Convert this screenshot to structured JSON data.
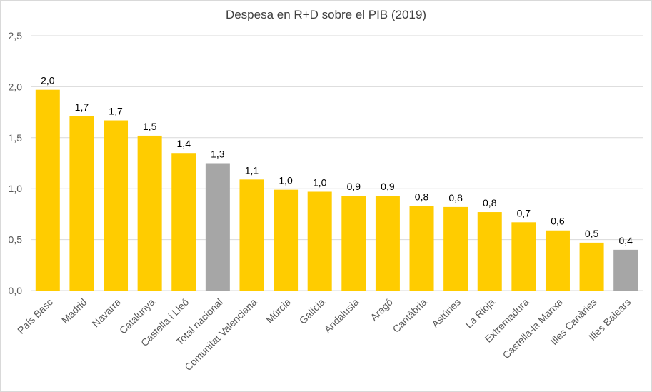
{
  "chart_data": {
    "type": "bar",
    "title": "Despesa en R+D sobre el PIB (2019)",
    "xlabel": "",
    "ylabel": "",
    "ylim": [
      0,
      2.5
    ],
    "yticks": [
      "0,0",
      "0,5",
      "1,0",
      "1,5",
      "2,0",
      "2,5"
    ],
    "grid": true,
    "legend": "none",
    "categories": [
      "País Basc",
      "Madrid",
      "Navarra",
      "Catalunya",
      "Castella i Lleó",
      "Total nacional",
      "Comunitat Valenciana",
      "Múrcia",
      "Galícia",
      "Andalusia",
      "Aragó",
      "Cantàbria",
      "Astúries",
      "La Rioja",
      "Extremadura",
      "Castella-la Manxa",
      "Illes Canàries",
      "Illes Balears"
    ],
    "values": [
      1.97,
      1.71,
      1.67,
      1.52,
      1.35,
      1.25,
      1.09,
      0.99,
      0.97,
      0.93,
      0.93,
      0.83,
      0.82,
      0.77,
      0.67,
      0.59,
      0.47,
      0.4
    ],
    "data_labels": [
      "2,0",
      "1,7",
      "1,7",
      "1,5",
      "1,4",
      "1,3",
      "1,1",
      "1,0",
      "1,0",
      "0,9",
      "0,9",
      "0,8",
      "0,8",
      "0,8",
      "0,7",
      "0,6",
      "0,5",
      "0,4"
    ],
    "colors": [
      "#FFCC00",
      "#FFCC00",
      "#FFCC00",
      "#FFCC00",
      "#FFCC00",
      "#A6A6A6",
      "#FFCC00",
      "#FFCC00",
      "#FFCC00",
      "#FFCC00",
      "#FFCC00",
      "#FFCC00",
      "#FFCC00",
      "#FFCC00",
      "#FFCC00",
      "#FFCC00",
      "#FFCC00",
      "#A6A6A6"
    ]
  }
}
